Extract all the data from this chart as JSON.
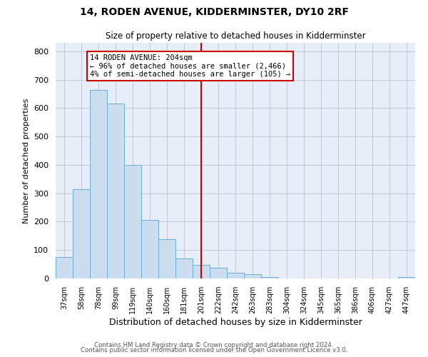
{
  "title": "14, RODEN AVENUE, KIDDERMINSTER, DY10 2RF",
  "subtitle": "Size of property relative to detached houses in Kidderminster",
  "xlabel": "Distribution of detached houses by size in Kidderminster",
  "ylabel": "Number of detached properties",
  "bin_labels": [
    "37sqm",
    "58sqm",
    "78sqm",
    "99sqm",
    "119sqm",
    "140sqm",
    "160sqm",
    "181sqm",
    "201sqm",
    "222sqm",
    "242sqm",
    "263sqm",
    "283sqm",
    "304sqm",
    "324sqm",
    "345sqm",
    "365sqm",
    "386sqm",
    "406sqm",
    "427sqm",
    "447sqm"
  ],
  "bar_heights": [
    75,
    315,
    665,
    615,
    400,
    205,
    138,
    70,
    48,
    38,
    20,
    15,
    5,
    0,
    0,
    0,
    0,
    0,
    0,
    0,
    5
  ],
  "bar_color": "#ccddf0",
  "bar_edge_color": "#6baed6",
  "vline_x": 8,
  "vline_color": "#cc0000",
  "annotation_title": "14 RODEN AVENUE: 204sqm",
  "annotation_line1": "← 96% of detached houses are smaller (2,466)",
  "annotation_line2": "4% of semi-detached houses are larger (105) →",
  "annotation_box_color": "#ffffff",
  "annotation_box_edge": "#cc0000",
  "ylim": [
    0,
    830
  ],
  "yticks": [
    0,
    100,
    200,
    300,
    400,
    500,
    600,
    700,
    800
  ],
  "footer1": "Contains HM Land Registry data © Crown copyright and database right 2024.",
  "footer2": "Contains public sector information licensed under the Open Government Licence v3.0.",
  "background_color": "#ffffff",
  "plot_bg_color": "#e8eef7",
  "grid_color": "#c0c8d8"
}
